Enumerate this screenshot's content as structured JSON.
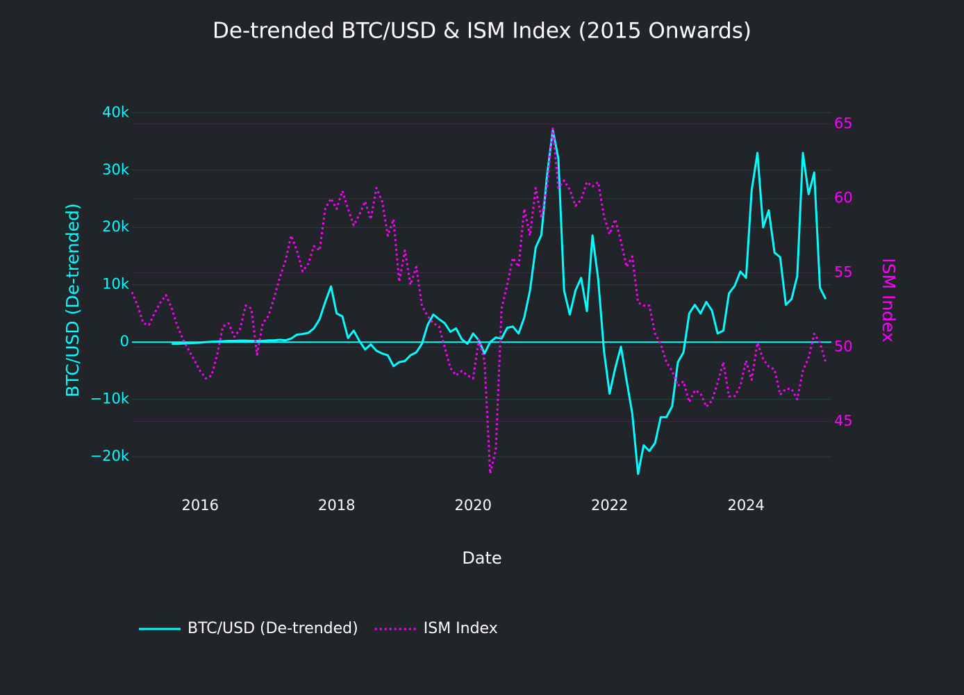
{
  "chart_data": {
    "type": "line",
    "title": "De-trended BTC/USD & ISM Index (2015 Onwards)",
    "x_label": "Date",
    "y_label": "BTC/USD (De-trended)",
    "y2_label": "ISM Index",
    "grid": true,
    "legend": "bottom-left",
    "x": [
      2015,
      2015.083,
      2015.167,
      2015.25,
      2015.333,
      2015.417,
      2015.5,
      2015.583,
      2015.667,
      2015.75,
      2015.833,
      2015.917,
      2016,
      2016.083,
      2016.167,
      2016.25,
      2016.333,
      2016.417,
      2016.5,
      2016.583,
      2016.667,
      2016.75,
      2016.833,
      2016.917,
      2017,
      2017.083,
      2017.167,
      2017.25,
      2017.333,
      2017.417,
      2017.5,
      2017.583,
      2017.667,
      2017.75,
      2017.833,
      2017.917,
      2018,
      2018.083,
      2018.167,
      2018.25,
      2018.333,
      2018.417,
      2018.5,
      2018.583,
      2018.667,
      2018.75,
      2018.833,
      2018.917,
      2019,
      2019.083,
      2019.167,
      2019.25,
      2019.333,
      2019.417,
      2019.5,
      2019.583,
      2019.667,
      2019.75,
      2019.833,
      2019.917,
      2020,
      2020.083,
      2020.167,
      2020.25,
      2020.333,
      2020.417,
      2020.5,
      2020.583,
      2020.667,
      2020.75,
      2020.833,
      2020.917,
      2021,
      2021.083,
      2021.167,
      2021.25,
      2021.333,
      2021.417,
      2021.5,
      2021.583,
      2021.667,
      2021.75,
      2021.833,
      2021.917,
      2022,
      2022.083,
      2022.167,
      2022.25,
      2022.333,
      2022.417,
      2022.5,
      2022.583,
      2022.667,
      2022.75,
      2022.833,
      2022.917,
      2023,
      2023.083,
      2023.167,
      2023.25,
      2023.333,
      2023.417,
      2023.5,
      2023.583,
      2023.667,
      2023.75,
      2023.833,
      2023.917,
      2024,
      2024.083,
      2024.167,
      2024.25,
      2024.333,
      2024.417,
      2024.5,
      2024.583,
      2024.667,
      2024.75,
      2024.833,
      2024.917,
      2025,
      2025.083,
      2025.167
    ],
    "xlim": [
      2015,
      2025.25
    ],
    "xticks": [
      2016,
      2018,
      2020,
      2022,
      2024
    ],
    "ylim": [
      -25800,
      42700
    ],
    "yticks": [
      {
        "value": -20000,
        "label": "−20k"
      },
      {
        "value": -10000,
        "label": "−10k"
      },
      0,
      {
        "value": 10000,
        "label": "10k"
      },
      {
        "value": 20000,
        "label": "20k"
      },
      {
        "value": 30000,
        "label": "30k"
      },
      {
        "value": 40000,
        "label": "40k"
      }
    ],
    "y2lim": [
      40.4,
      66.8
    ],
    "y2ticks": [
      45,
      50,
      55,
      60,
      65
    ],
    "series": [
      {
        "name": "BTC/USD (De-trended)",
        "color": "#00ffff",
        "axis": "y",
        "dash": "solid",
        "values": [
          null,
          null,
          null,
          null,
          null,
          null,
          null,
          -300,
          -300,
          -250,
          -200,
          -150,
          -100,
          0,
          50,
          100,
          150,
          200,
          200,
          250,
          250,
          200,
          200,
          200,
          300,
          300,
          400,
          300,
          600,
          1300,
          1400,
          1600,
          2400,
          4000,
          7000,
          9700,
          5000,
          4500,
          700,
          2000,
          200,
          -1300,
          -400,
          -1500,
          -2000,
          -2300,
          -4200,
          -3500,
          -3300,
          -2300,
          -1800,
          -300,
          3000,
          4800,
          4000,
          3300,
          1800,
          2400,
          500,
          -300,
          1500,
          300,
          -2000,
          0,
          800,
          600,
          2500,
          2700,
          1500,
          4300,
          9000,
          16500,
          18700,
          29000,
          37000,
          32000,
          9000,
          4800,
          9000,
          11200,
          5400,
          18600,
          11000,
          -1500,
          -9000,
          -4500,
          -800,
          -6800,
          -12500,
          -23000,
          -18000,
          -19000,
          -17600,
          -13100,
          -13100,
          -11200,
          -3500,
          -1800,
          5000,
          6500,
          5000,
          7000,
          5500,
          1500,
          2000,
          8500,
          9800,
          12300,
          11200,
          26500,
          33000,
          20000,
          23000,
          15600,
          14800,
          6500,
          7500,
          11500,
          33000,
          25800,
          29600,
          9500,
          7500
        ]
      },
      {
        "name": "ISM Index",
        "color": "#ff00ff",
        "axis": "y2",
        "dash": "dot",
        "values": [
          53.7,
          52.8,
          51.6,
          51.5,
          52.3,
          53.0,
          53.5,
          52.6,
          51.4,
          50.5,
          49.8,
          49.1,
          48.4,
          47.9,
          48.1,
          49.5,
          51.4,
          51.6,
          50.7,
          51.2,
          52.8,
          52.6,
          49.5,
          51.6,
          52.1,
          53.3,
          54.7,
          55.8,
          57.5,
          56.5,
          55.1,
          55.6,
          56.8,
          56.5,
          59.3,
          60.0,
          59.3,
          60.5,
          59.3,
          58.2,
          58.9,
          59.8,
          58.6,
          60.7,
          59.8,
          57.5,
          58.6,
          54.4,
          56.5,
          54.2,
          55.4,
          52.8,
          52.1,
          51.6,
          51.4,
          50.0,
          48.6,
          48.1,
          48.4,
          48.1,
          47.9,
          50.5,
          49.1,
          41.5,
          43.1,
          52.6,
          54.2,
          56.0,
          55.4,
          59.3,
          57.5,
          60.7,
          58.7,
          60.8,
          64.7,
          60.7,
          61.2,
          60.6,
          59.5,
          59.9,
          61.1,
          60.8,
          61.1,
          58.8,
          57.6,
          58.6,
          57.1,
          55.4,
          56.1,
          53.0,
          52.8,
          52.8,
          50.9,
          50.2,
          49.0,
          48.4,
          47.4,
          47.7,
          46.3,
          47.1,
          46.9,
          46.0,
          46.4,
          47.6,
          49.0,
          46.7,
          46.7,
          47.4,
          49.1,
          47.8,
          50.3,
          49.2,
          48.7,
          48.5,
          46.8,
          47.2,
          47.2,
          46.5,
          48.4,
          49.3,
          50.9,
          50.3,
          49.0
        ]
      }
    ]
  }
}
